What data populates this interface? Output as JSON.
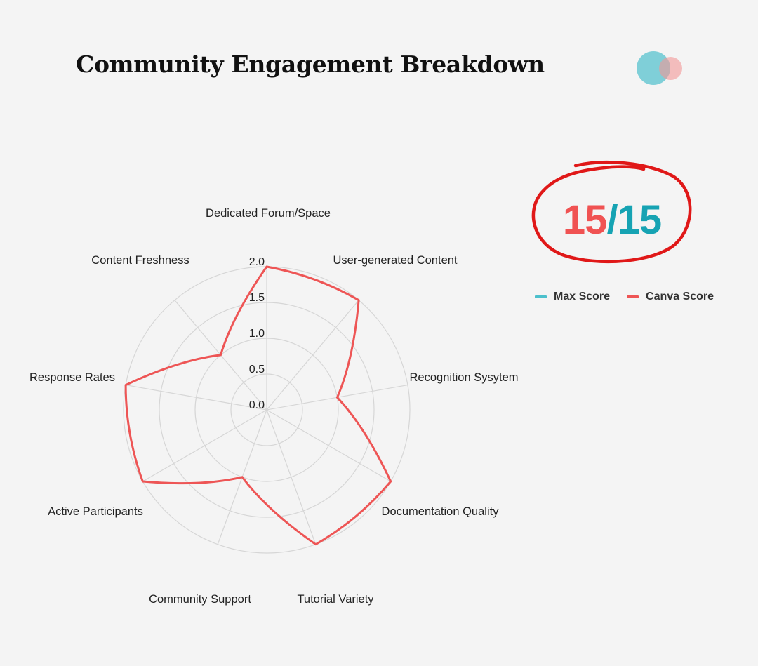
{
  "header": {
    "title": "Community Engagement Breakdown"
  },
  "score": {
    "achieved": "15",
    "separator": "/",
    "maximum": "15",
    "achieved_color": "#f05252",
    "maximum_color": "#16a3b3",
    "circle_color": "#e01818"
  },
  "legend": {
    "items": [
      {
        "label": "Max Score",
        "color": "#4cc0cc"
      },
      {
        "label": "Canva Score",
        "color": "#ee5555"
      }
    ]
  },
  "chart_data": {
    "type": "radar",
    "title": "Community Engagement Breakdown",
    "categories": [
      "Dedicated Forum/Space",
      "User-generated Content",
      "Recognition Sysytem",
      "Documentation Quality",
      "Tutorial Variety",
      "Community Support",
      "Active Participants",
      "Response Rates",
      "Content Freshness"
    ],
    "series": [
      {
        "name": "Max Score",
        "values": [
          2,
          2,
          1,
          2,
          2,
          1,
          2,
          2,
          1
        ],
        "color": "#4cc0cc"
      },
      {
        "name": "Canva Score",
        "values": [
          2,
          2,
          1,
          2,
          2,
          1,
          2,
          2,
          1
        ],
        "color": "#ee5555"
      }
    ],
    "rlim": [
      0,
      2.0
    ],
    "ticks": [
      "0.0",
      "0.5",
      "1.0",
      "1.5",
      "2.0"
    ],
    "tick_values": [
      0,
      0.5,
      1.0,
      1.5,
      2.0
    ],
    "grid": true,
    "legend_position": "right"
  }
}
